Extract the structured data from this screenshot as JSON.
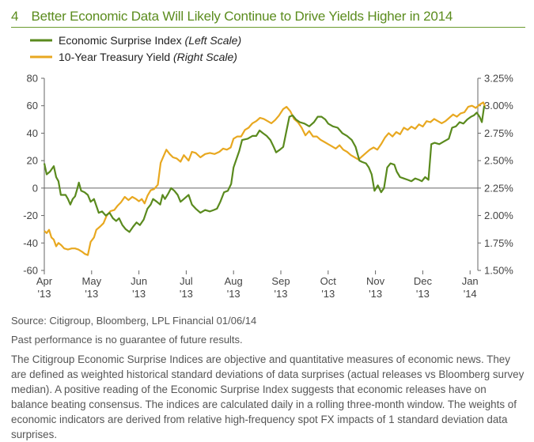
{
  "header": {
    "figure_number": "4",
    "title": "Better Economic Data Will Likely Continue to Drive Yields Higher in 2014"
  },
  "colors": {
    "esi": "#5a8a1e",
    "yield": "#e8a820",
    "title": "#5b8c1e",
    "axis": "#666666"
  },
  "chart_data": {
    "type": "line",
    "title": "Better Economic Data Will Likely Continue to Drive Yields Higher in 2014",
    "legend_position": "top-left",
    "grid": false,
    "x_ticks": [
      {
        "month": "Apr",
        "year": "'13",
        "pos": 0
      },
      {
        "month": "May",
        "year": "'13",
        "pos": 1
      },
      {
        "month": "Jun",
        "year": "'13",
        "pos": 2
      },
      {
        "month": "Jul",
        "year": "'13",
        "pos": 3
      },
      {
        "month": "Aug",
        "year": "'13",
        "pos": 4
      },
      {
        "month": "Sep",
        "year": "'13",
        "pos": 5
      },
      {
        "month": "Oct",
        "year": "'13",
        "pos": 6
      },
      {
        "month": "Nov",
        "year": "'13",
        "pos": 7
      },
      {
        "month": "Dec",
        "year": "'13",
        "pos": 8
      },
      {
        "month": "Jan",
        "year": "'14",
        "pos": 9
      }
    ],
    "left_axis": {
      "min": -60,
      "max": 80,
      "ticks": [
        80,
        60,
        40,
        20,
        0,
        -20,
        -40,
        -60
      ]
    },
    "right_axis": {
      "min": 1.5,
      "max": 3.25,
      "ticks": [
        "3.25%",
        "3.00%",
        "2.75%",
        "2.50%",
        "2.25%",
        "2.00%",
        "1.75%",
        "1.50%"
      ]
    },
    "series": [
      {
        "name": "Economic Surprise Index",
        "name_suffix": "(Left Scale)",
        "axis": "left",
        "points": [
          [
            0.0,
            18
          ],
          [
            0.05,
            10
          ],
          [
            0.12,
            12
          ],
          [
            0.2,
            16
          ],
          [
            0.25,
            8
          ],
          [
            0.3,
            5
          ],
          [
            0.35,
            -5
          ],
          [
            0.45,
            -5
          ],
          [
            0.5,
            -8
          ],
          [
            0.55,
            -12
          ],
          [
            0.6,
            -8
          ],
          [
            0.65,
            -6
          ],
          [
            0.7,
            0
          ],
          [
            0.73,
            4
          ],
          [
            0.78,
            -2
          ],
          [
            0.85,
            -3
          ],
          [
            0.92,
            -5
          ],
          [
            0.98,
            -10
          ],
          [
            1.05,
            -8
          ],
          [
            1.1,
            -13
          ],
          [
            1.15,
            -18
          ],
          [
            1.22,
            -17
          ],
          [
            1.3,
            -20
          ],
          [
            1.38,
            -18
          ],
          [
            1.45,
            -22
          ],
          [
            1.52,
            -24
          ],
          [
            1.58,
            -22
          ],
          [
            1.65,
            -27
          ],
          [
            1.72,
            -30
          ],
          [
            1.8,
            -32
          ],
          [
            1.88,
            -28
          ],
          [
            1.95,
            -25
          ],
          [
            2.02,
            -27
          ],
          [
            2.1,
            -23
          ],
          [
            2.18,
            -15
          ],
          [
            2.25,
            -12
          ],
          [
            2.3,
            -8
          ],
          [
            2.38,
            -10
          ],
          [
            2.45,
            -12
          ],
          [
            2.5,
            -5
          ],
          [
            2.55,
            -8
          ],
          [
            2.62,
            -4
          ],
          [
            2.68,
            0
          ],
          [
            2.75,
            -2
          ],
          [
            2.82,
            -5
          ],
          [
            2.88,
            -10
          ],
          [
            2.95,
            -8
          ],
          [
            3.05,
            -5
          ],
          [
            3.12,
            -12
          ],
          [
            3.2,
            -15
          ],
          [
            3.3,
            -18
          ],
          [
            3.4,
            -16
          ],
          [
            3.5,
            -17
          ],
          [
            3.58,
            -16
          ],
          [
            3.65,
            -15
          ],
          [
            3.72,
            -10
          ],
          [
            3.8,
            -3
          ],
          [
            3.88,
            -2
          ],
          [
            3.95,
            3
          ],
          [
            4.0,
            15
          ],
          [
            4.05,
            20
          ],
          [
            4.12,
            27
          ],
          [
            4.18,
            35
          ],
          [
            4.3,
            36
          ],
          [
            4.4,
            38
          ],
          [
            4.48,
            38
          ],
          [
            4.55,
            42
          ],
          [
            4.62,
            40
          ],
          [
            4.7,
            38
          ],
          [
            4.78,
            35
          ],
          [
            4.85,
            30
          ],
          [
            4.9,
            26
          ],
          [
            4.98,
            28
          ],
          [
            5.05,
            30
          ],
          [
            5.12,
            42
          ],
          [
            5.18,
            52
          ],
          [
            5.25,
            53
          ],
          [
            5.32,
            50
          ],
          [
            5.4,
            48
          ],
          [
            5.5,
            47
          ],
          [
            5.6,
            45
          ],
          [
            5.7,
            48
          ],
          [
            5.78,
            52
          ],
          [
            5.86,
            52
          ],
          [
            5.94,
            50
          ],
          [
            6.0,
            47
          ],
          [
            6.1,
            45
          ],
          [
            6.2,
            44
          ],
          [
            6.3,
            40
          ],
          [
            6.4,
            38
          ],
          [
            6.5,
            35
          ],
          [
            6.58,
            30
          ],
          [
            6.66,
            20
          ],
          [
            6.72,
            19
          ],
          [
            6.8,
            18
          ],
          [
            6.86,
            15
          ],
          [
            6.92,
            10
          ],
          [
            6.98,
            -2
          ],
          [
            7.05,
            2
          ],
          [
            7.12,
            -3
          ],
          [
            7.18,
            0
          ],
          [
            7.25,
            15
          ],
          [
            7.32,
            18
          ],
          [
            7.4,
            17
          ],
          [
            7.45,
            12
          ],
          [
            7.52,
            8
          ],
          [
            7.6,
            7
          ],
          [
            7.68,
            6
          ],
          [
            7.76,
            5
          ],
          [
            7.84,
            7
          ],
          [
            7.92,
            6
          ],
          [
            7.98,
            5
          ],
          [
            8.05,
            8
          ],
          [
            8.12,
            6
          ],
          [
            8.18,
            32
          ],
          [
            8.25,
            33
          ],
          [
            8.35,
            32
          ],
          [
            8.45,
            34
          ],
          [
            8.55,
            36
          ],
          [
            8.62,
            44
          ],
          [
            8.7,
            45
          ],
          [
            8.78,
            48
          ],
          [
            8.86,
            47
          ],
          [
            8.94,
            50
          ],
          [
            9.02,
            52
          ],
          [
            9.08,
            53
          ],
          [
            9.14,
            55
          ],
          [
            9.2,
            52
          ],
          [
            9.25,
            48
          ],
          [
            9.3,
            60
          ]
        ]
      },
      {
        "name": "10-Year Treasury Yield",
        "name_suffix": "(Right Scale)",
        "axis": "right",
        "points": [
          [
            0.0,
            1.86
          ],
          [
            0.05,
            1.84
          ],
          [
            0.1,
            1.87
          ],
          [
            0.15,
            1.8
          ],
          [
            0.2,
            1.78
          ],
          [
            0.25,
            1.72
          ],
          [
            0.3,
            1.75
          ],
          [
            0.36,
            1.73
          ],
          [
            0.42,
            1.7
          ],
          [
            0.5,
            1.69
          ],
          [
            0.58,
            1.7
          ],
          [
            0.65,
            1.7
          ],
          [
            0.72,
            1.69
          ],
          [
            0.8,
            1.67
          ],
          [
            0.86,
            1.65
          ],
          [
            0.92,
            1.64
          ],
          [
            0.98,
            1.76
          ],
          [
            1.05,
            1.8
          ],
          [
            1.1,
            1.87
          ],
          [
            1.18,
            1.9
          ],
          [
            1.25,
            1.93
          ],
          [
            1.32,
            2.0
          ],
          [
            1.4,
            2.04
          ],
          [
            1.48,
            2.05
          ],
          [
            1.55,
            2.09
          ],
          [
            1.62,
            2.12
          ],
          [
            1.7,
            2.17
          ],
          [
            1.78,
            2.14
          ],
          [
            1.86,
            2.17
          ],
          [
            1.94,
            2.15
          ],
          [
            2.0,
            2.13
          ],
          [
            2.06,
            2.15
          ],
          [
            2.12,
            2.11
          ],
          [
            2.18,
            2.18
          ],
          [
            2.25,
            2.23
          ],
          [
            2.32,
            2.24
          ],
          [
            2.4,
            2.28
          ],
          [
            2.46,
            2.48
          ],
          [
            2.52,
            2.54
          ],
          [
            2.58,
            2.6
          ],
          [
            2.65,
            2.56
          ],
          [
            2.72,
            2.53
          ],
          [
            2.8,
            2.52
          ],
          [
            2.88,
            2.49
          ],
          [
            2.95,
            2.55
          ],
          [
            3.05,
            2.5
          ],
          [
            3.12,
            2.58
          ],
          [
            3.2,
            2.57
          ],
          [
            3.3,
            2.53
          ],
          [
            3.4,
            2.56
          ],
          [
            3.5,
            2.57
          ],
          [
            3.6,
            2.56
          ],
          [
            3.7,
            2.58
          ],
          [
            3.78,
            2.61
          ],
          [
            3.86,
            2.6
          ],
          [
            3.94,
            2.62
          ],
          [
            4.0,
            2.7
          ],
          [
            4.08,
            2.72
          ],
          [
            4.16,
            2.72
          ],
          [
            4.24,
            2.78
          ],
          [
            4.32,
            2.8
          ],
          [
            4.4,
            2.84
          ],
          [
            4.48,
            2.86
          ],
          [
            4.56,
            2.89
          ],
          [
            4.64,
            2.88
          ],
          [
            4.72,
            2.86
          ],
          [
            4.8,
            2.84
          ],
          [
            4.88,
            2.87
          ],
          [
            4.96,
            2.91
          ],
          [
            5.05,
            2.97
          ],
          [
            5.12,
            2.99
          ],
          [
            5.2,
            2.95
          ],
          [
            5.28,
            2.88
          ],
          [
            5.36,
            2.85
          ],
          [
            5.44,
            2.8
          ],
          [
            5.52,
            2.73
          ],
          [
            5.6,
            2.77
          ],
          [
            5.68,
            2.72
          ],
          [
            5.76,
            2.72
          ],
          [
            5.84,
            2.69
          ],
          [
            5.92,
            2.67
          ],
          [
            6.0,
            2.65
          ],
          [
            6.08,
            2.63
          ],
          [
            6.16,
            2.61
          ],
          [
            6.24,
            2.64
          ],
          [
            6.32,
            2.6
          ],
          [
            6.4,
            2.58
          ],
          [
            6.48,
            2.55
          ],
          [
            6.56,
            2.53
          ],
          [
            6.64,
            2.51
          ],
          [
            6.72,
            2.54
          ],
          [
            6.8,
            2.57
          ],
          [
            6.88,
            2.6
          ],
          [
            6.96,
            2.62
          ],
          [
            7.04,
            2.6
          ],
          [
            7.12,
            2.65
          ],
          [
            7.2,
            2.71
          ],
          [
            7.28,
            2.75
          ],
          [
            7.36,
            2.72
          ],
          [
            7.44,
            2.76
          ],
          [
            7.52,
            2.74
          ],
          [
            7.6,
            2.8
          ],
          [
            7.68,
            2.78
          ],
          [
            7.76,
            2.81
          ],
          [
            7.84,
            2.79
          ],
          [
            7.92,
            2.83
          ],
          [
            8.0,
            2.81
          ],
          [
            8.08,
            2.86
          ],
          [
            8.16,
            2.85
          ],
          [
            8.24,
            2.88
          ],
          [
            8.32,
            2.86
          ],
          [
            8.4,
            2.84
          ],
          [
            8.48,
            2.86
          ],
          [
            8.56,
            2.89
          ],
          [
            8.64,
            2.92
          ],
          [
            8.72,
            2.9
          ],
          [
            8.8,
            2.93
          ],
          [
            8.88,
            2.94
          ],
          [
            8.96,
            2.99
          ],
          [
            9.04,
            3.0
          ],
          [
            9.12,
            2.98
          ],
          [
            9.2,
            3.01
          ],
          [
            9.28,
            3.03
          ],
          [
            9.32,
            2.99
          ]
        ]
      }
    ]
  },
  "footer": {
    "source": "Source: Citigroup, Bloomberg, LPL Financial   01/06/14",
    "disclaimer": "Past performance is no guarantee of future results.",
    "description": "The Citigroup Economic Surprise Indices are objective and quantitative measures of economic news. They are defined as weighted historical standard deviations of data surprises (actual releases vs Bloomberg survey median). A positive reading of the Economic Surprise Index suggests that economic releases have on balance beating consensus. The indices are calculated daily in a rolling three-month window. The weights of economic indicators are derived from relative high-frequency spot FX impacts of 1 standard deviation data surprises."
  }
}
